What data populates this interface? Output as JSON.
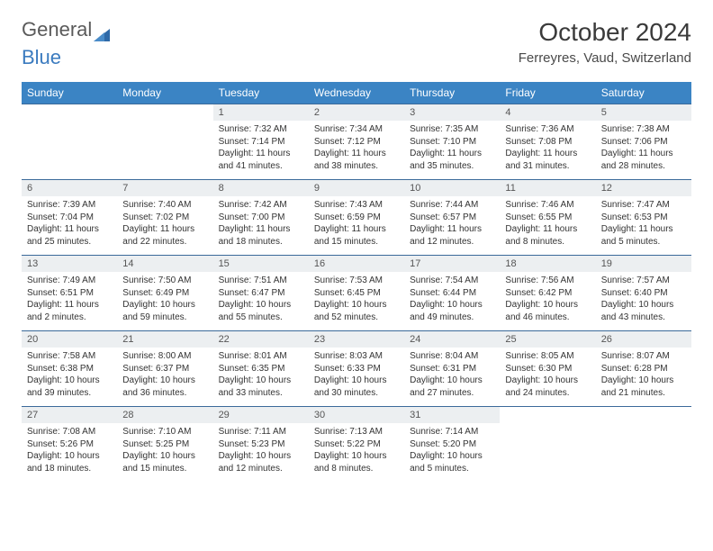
{
  "brand": {
    "part1": "General",
    "part2": "Blue"
  },
  "title": "October 2024",
  "location": "Ferreyres, Vaud, Switzerland",
  "colors": {
    "header_bg": "#3b84c4",
    "header_text": "#ffffff",
    "daynum_bg": "#eceff1",
    "border": "#3b6a9a",
    "title_color": "#3a3a3a",
    "body_text": "#333333",
    "logo_gray": "#5a5a5a",
    "logo_blue": "#3b7bbf"
  },
  "typography": {
    "title_fontsize": 28,
    "location_fontsize": 15,
    "dayheader_fontsize": 12,
    "daynum_fontsize": 11,
    "body_fontsize": 10
  },
  "dayHeaders": [
    "Sunday",
    "Monday",
    "Tuesday",
    "Wednesday",
    "Thursday",
    "Friday",
    "Saturday"
  ],
  "weeks": [
    [
      {
        "empty": true
      },
      {
        "empty": true
      },
      {
        "num": "1",
        "sunrise": "Sunrise: 7:32 AM",
        "sunset": "Sunset: 7:14 PM",
        "day1": "Daylight: 11 hours",
        "day2": "and 41 minutes."
      },
      {
        "num": "2",
        "sunrise": "Sunrise: 7:34 AM",
        "sunset": "Sunset: 7:12 PM",
        "day1": "Daylight: 11 hours",
        "day2": "and 38 minutes."
      },
      {
        "num": "3",
        "sunrise": "Sunrise: 7:35 AM",
        "sunset": "Sunset: 7:10 PM",
        "day1": "Daylight: 11 hours",
        "day2": "and 35 minutes."
      },
      {
        "num": "4",
        "sunrise": "Sunrise: 7:36 AM",
        "sunset": "Sunset: 7:08 PM",
        "day1": "Daylight: 11 hours",
        "day2": "and 31 minutes."
      },
      {
        "num": "5",
        "sunrise": "Sunrise: 7:38 AM",
        "sunset": "Sunset: 7:06 PM",
        "day1": "Daylight: 11 hours",
        "day2": "and 28 minutes."
      }
    ],
    [
      {
        "num": "6",
        "sunrise": "Sunrise: 7:39 AM",
        "sunset": "Sunset: 7:04 PM",
        "day1": "Daylight: 11 hours",
        "day2": "and 25 minutes."
      },
      {
        "num": "7",
        "sunrise": "Sunrise: 7:40 AM",
        "sunset": "Sunset: 7:02 PM",
        "day1": "Daylight: 11 hours",
        "day2": "and 22 minutes."
      },
      {
        "num": "8",
        "sunrise": "Sunrise: 7:42 AM",
        "sunset": "Sunset: 7:00 PM",
        "day1": "Daylight: 11 hours",
        "day2": "and 18 minutes."
      },
      {
        "num": "9",
        "sunrise": "Sunrise: 7:43 AM",
        "sunset": "Sunset: 6:59 PM",
        "day1": "Daylight: 11 hours",
        "day2": "and 15 minutes."
      },
      {
        "num": "10",
        "sunrise": "Sunrise: 7:44 AM",
        "sunset": "Sunset: 6:57 PM",
        "day1": "Daylight: 11 hours",
        "day2": "and 12 minutes."
      },
      {
        "num": "11",
        "sunrise": "Sunrise: 7:46 AM",
        "sunset": "Sunset: 6:55 PM",
        "day1": "Daylight: 11 hours",
        "day2": "and 8 minutes."
      },
      {
        "num": "12",
        "sunrise": "Sunrise: 7:47 AM",
        "sunset": "Sunset: 6:53 PM",
        "day1": "Daylight: 11 hours",
        "day2": "and 5 minutes."
      }
    ],
    [
      {
        "num": "13",
        "sunrise": "Sunrise: 7:49 AM",
        "sunset": "Sunset: 6:51 PM",
        "day1": "Daylight: 11 hours",
        "day2": "and 2 minutes."
      },
      {
        "num": "14",
        "sunrise": "Sunrise: 7:50 AM",
        "sunset": "Sunset: 6:49 PM",
        "day1": "Daylight: 10 hours",
        "day2": "and 59 minutes."
      },
      {
        "num": "15",
        "sunrise": "Sunrise: 7:51 AM",
        "sunset": "Sunset: 6:47 PM",
        "day1": "Daylight: 10 hours",
        "day2": "and 55 minutes."
      },
      {
        "num": "16",
        "sunrise": "Sunrise: 7:53 AM",
        "sunset": "Sunset: 6:45 PM",
        "day1": "Daylight: 10 hours",
        "day2": "and 52 minutes."
      },
      {
        "num": "17",
        "sunrise": "Sunrise: 7:54 AM",
        "sunset": "Sunset: 6:44 PM",
        "day1": "Daylight: 10 hours",
        "day2": "and 49 minutes."
      },
      {
        "num": "18",
        "sunrise": "Sunrise: 7:56 AM",
        "sunset": "Sunset: 6:42 PM",
        "day1": "Daylight: 10 hours",
        "day2": "and 46 minutes."
      },
      {
        "num": "19",
        "sunrise": "Sunrise: 7:57 AM",
        "sunset": "Sunset: 6:40 PM",
        "day1": "Daylight: 10 hours",
        "day2": "and 43 minutes."
      }
    ],
    [
      {
        "num": "20",
        "sunrise": "Sunrise: 7:58 AM",
        "sunset": "Sunset: 6:38 PM",
        "day1": "Daylight: 10 hours",
        "day2": "and 39 minutes."
      },
      {
        "num": "21",
        "sunrise": "Sunrise: 8:00 AM",
        "sunset": "Sunset: 6:37 PM",
        "day1": "Daylight: 10 hours",
        "day2": "and 36 minutes."
      },
      {
        "num": "22",
        "sunrise": "Sunrise: 8:01 AM",
        "sunset": "Sunset: 6:35 PM",
        "day1": "Daylight: 10 hours",
        "day2": "and 33 minutes."
      },
      {
        "num": "23",
        "sunrise": "Sunrise: 8:03 AM",
        "sunset": "Sunset: 6:33 PM",
        "day1": "Daylight: 10 hours",
        "day2": "and 30 minutes."
      },
      {
        "num": "24",
        "sunrise": "Sunrise: 8:04 AM",
        "sunset": "Sunset: 6:31 PM",
        "day1": "Daylight: 10 hours",
        "day2": "and 27 minutes."
      },
      {
        "num": "25",
        "sunrise": "Sunrise: 8:05 AM",
        "sunset": "Sunset: 6:30 PM",
        "day1": "Daylight: 10 hours",
        "day2": "and 24 minutes."
      },
      {
        "num": "26",
        "sunrise": "Sunrise: 8:07 AM",
        "sunset": "Sunset: 6:28 PM",
        "day1": "Daylight: 10 hours",
        "day2": "and 21 minutes."
      }
    ],
    [
      {
        "num": "27",
        "sunrise": "Sunrise: 7:08 AM",
        "sunset": "Sunset: 5:26 PM",
        "day1": "Daylight: 10 hours",
        "day2": "and 18 minutes."
      },
      {
        "num": "28",
        "sunrise": "Sunrise: 7:10 AM",
        "sunset": "Sunset: 5:25 PM",
        "day1": "Daylight: 10 hours",
        "day2": "and 15 minutes."
      },
      {
        "num": "29",
        "sunrise": "Sunrise: 7:11 AM",
        "sunset": "Sunset: 5:23 PM",
        "day1": "Daylight: 10 hours",
        "day2": "and 12 minutes."
      },
      {
        "num": "30",
        "sunrise": "Sunrise: 7:13 AM",
        "sunset": "Sunset: 5:22 PM",
        "day1": "Daylight: 10 hours",
        "day2": "and 8 minutes."
      },
      {
        "num": "31",
        "sunrise": "Sunrise: 7:14 AM",
        "sunset": "Sunset: 5:20 PM",
        "day1": "Daylight: 10 hours",
        "day2": "and 5 minutes."
      },
      {
        "empty": true
      },
      {
        "empty": true
      }
    ]
  ]
}
